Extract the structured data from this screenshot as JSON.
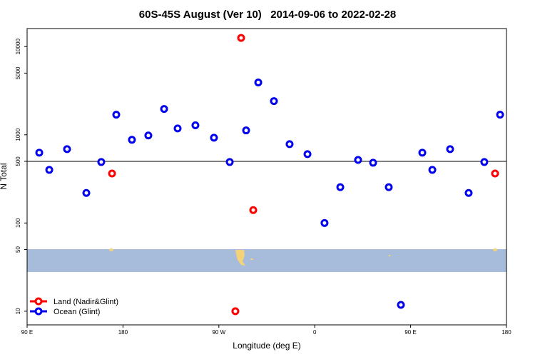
{
  "chart_data": {
    "type": "scatter",
    "title": "60S-45S August (Ver 10)   2014-09-06 to 2022-02-28",
    "x_label": "Longitude (deg E)",
    "y_label": "N Total",
    "log_y": true,
    "legend": "bottom-left",
    "hline": 500,
    "xlim": [
      90,
      540
    ],
    "xticks": [
      {
        "value": 90,
        "label": "90 E"
      },
      {
        "value": 180,
        "label": "180"
      },
      {
        "value": 270,
        "label": "90 W"
      },
      {
        "value": 360,
        "label": "0"
      },
      {
        "value": 450,
        "label": "90 E"
      },
      {
        "value": 540,
        "label": "180"
      }
    ],
    "ylim": [
      7,
      16000
    ],
    "yticks": [
      10,
      50,
      100,
      500,
      1000,
      5000,
      10000
    ],
    "series": [
      {
        "name": "Land (Nadir&Glint)",
        "color": "#ff0000",
        "x": [
          169.7,
          290.9,
          302.3,
          285.5,
          529.3
        ],
        "values": [
          364,
          12530,
          140,
          10,
          364
        ]
      },
      {
        "name": "Ocean (Glint)",
        "color": "#0000ee",
        "x": [
          101.4,
          110.8,
          127.5,
          145.6,
          159.6,
          173.7,
          188.4,
          203.8,
          218.6,
          231.3,
          248.0,
          265.4,
          280.2,
          295.6,
          307.0,
          321.7,
          336.4,
          353.2,
          369.2,
          384.0,
          400.7,
          414.8,
          429.5,
          440.9,
          461.0,
          470.4,
          487.1,
          504.5,
          519.2,
          534.0
        ],
        "values": [
          627,
          400,
          687,
          219,
          491,
          1690,
          877,
          982,
          1960,
          1180,
          1280,
          927,
          491,
          1120,
          3920,
          2410,
          783,
          603,
          100,
          255,
          519,
          482,
          255,
          11.8,
          627,
          400,
          687,
          219,
          491,
          1690
        ]
      }
    ]
  }
}
